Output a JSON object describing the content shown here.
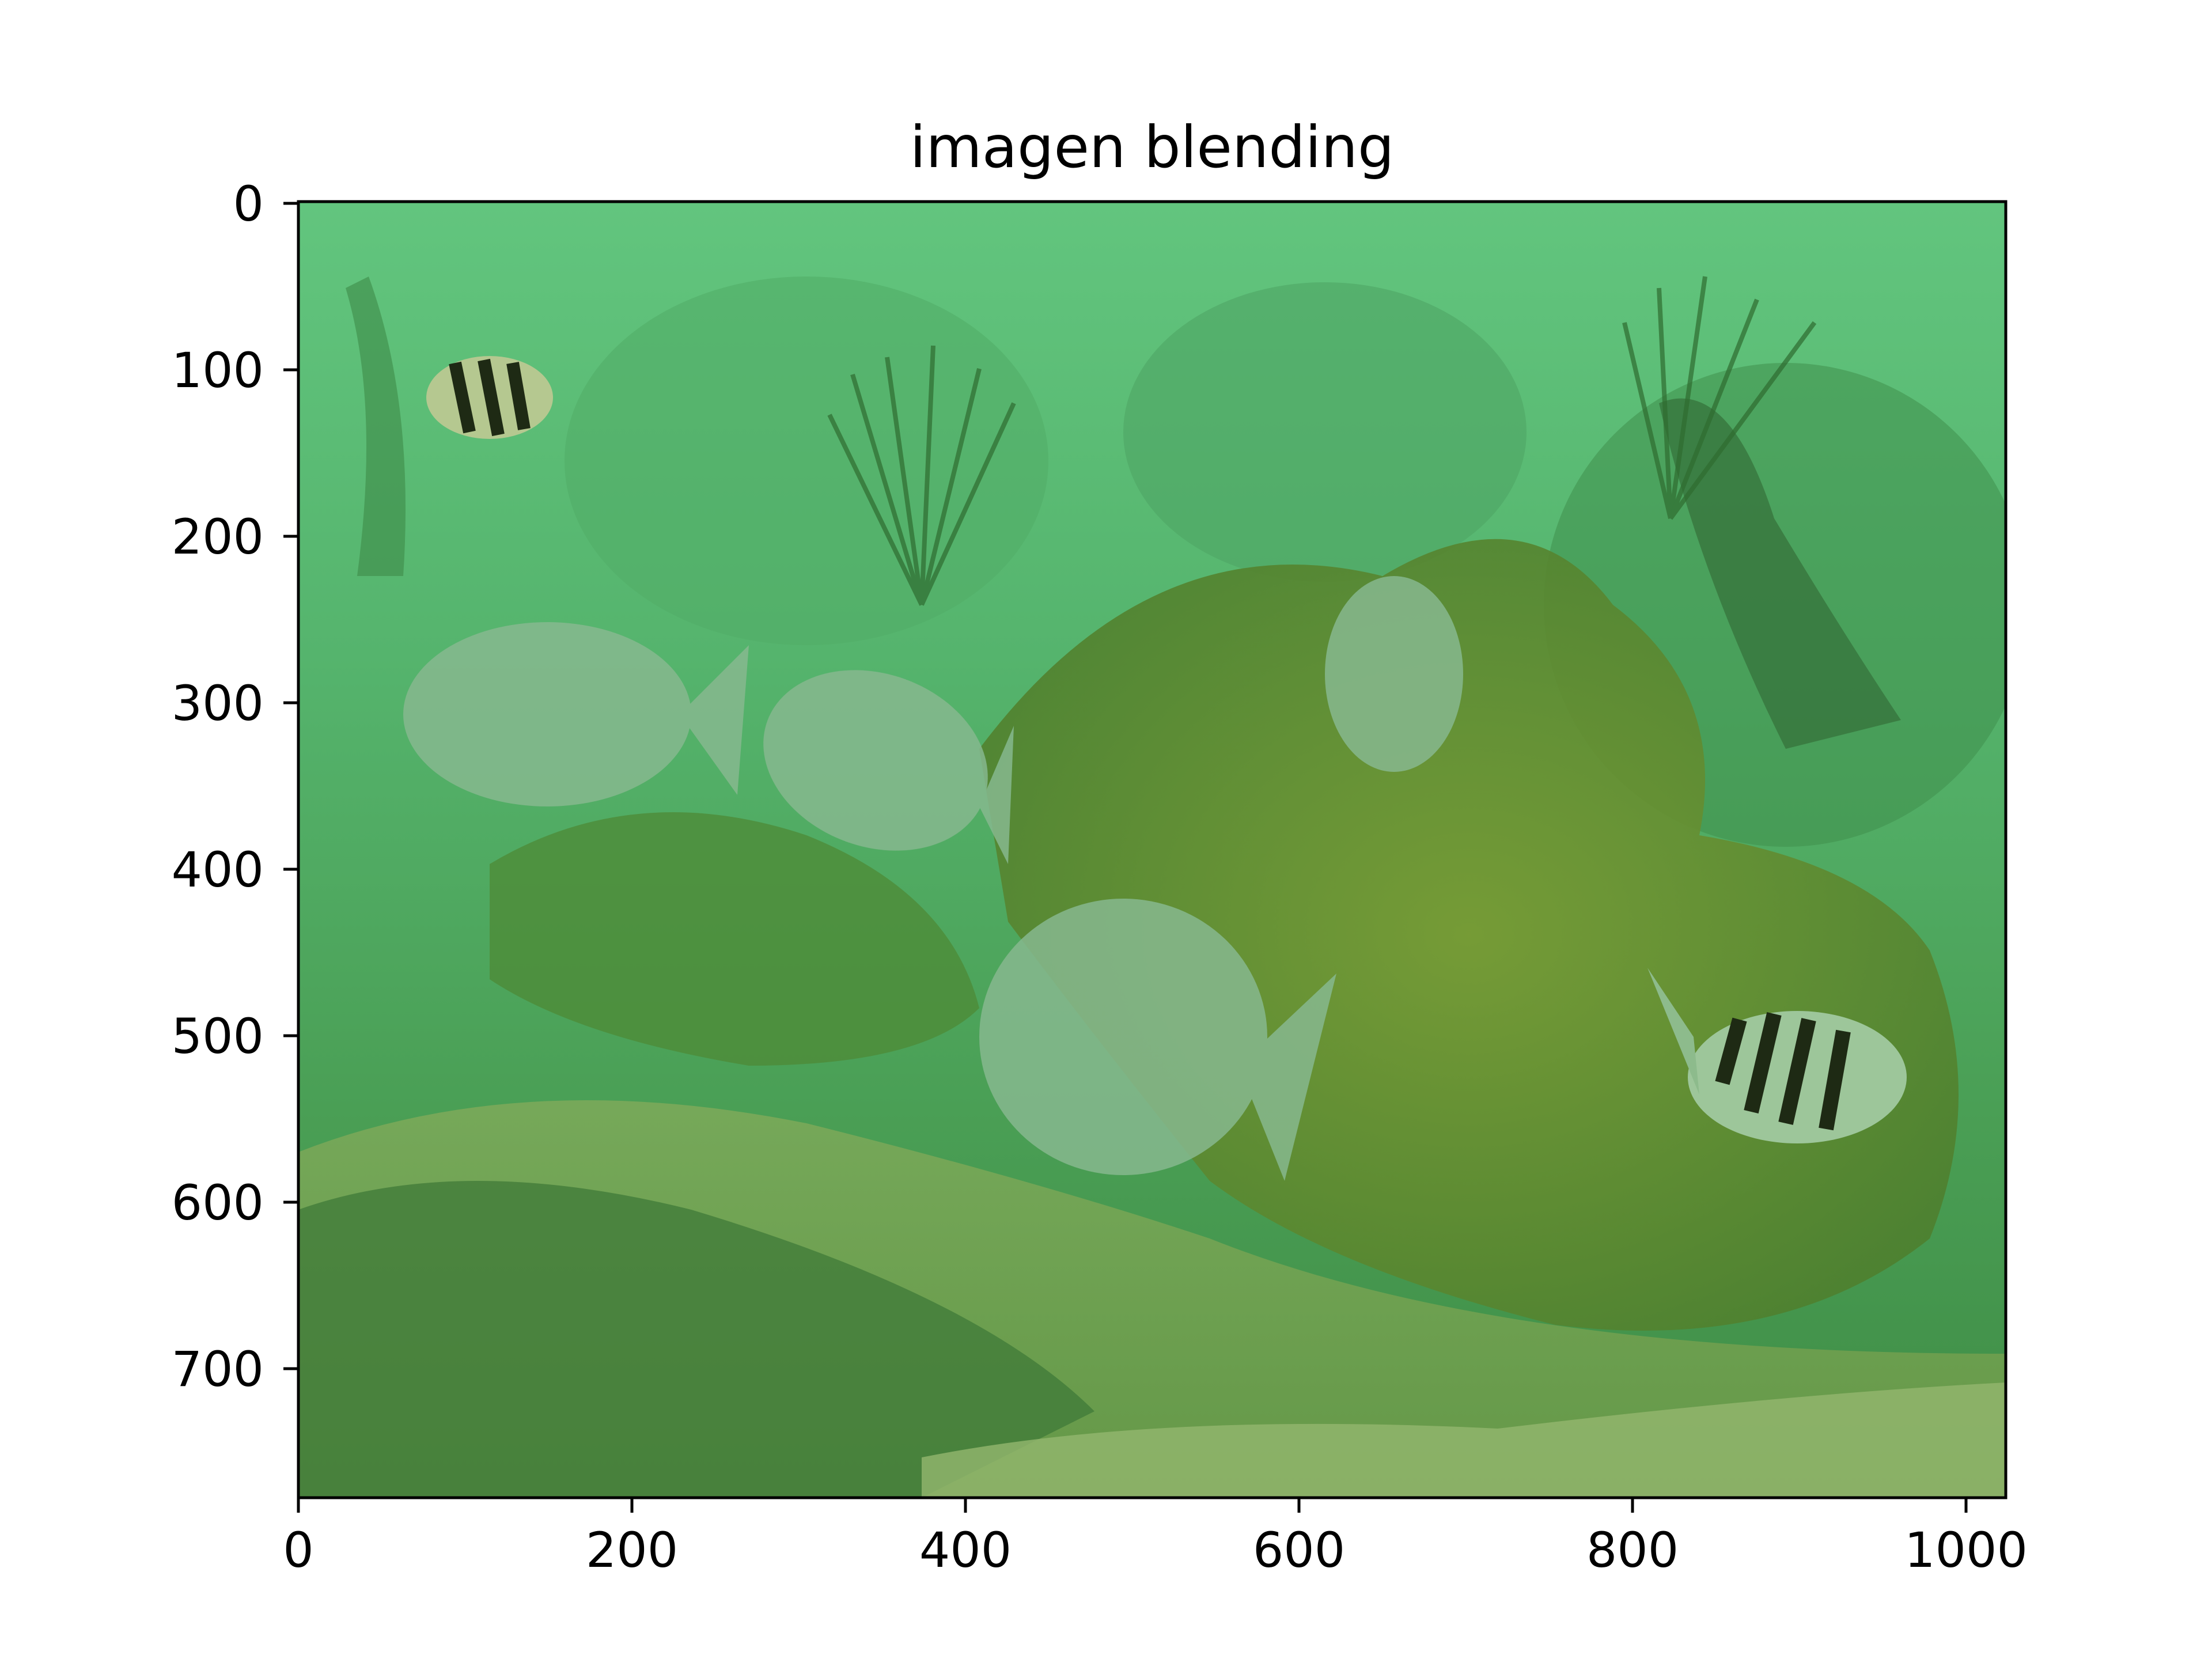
{
  "figure": {
    "title": "imagen blending",
    "image_description_name": "underwater-reef-photo",
    "x_ticks": [
      "0",
      "200",
      "400",
      "600",
      "800",
      "1000"
    ],
    "y_ticks": [
      "0",
      "100",
      "200",
      "300",
      "400",
      "500",
      "600",
      "700"
    ],
    "x_range": [
      0,
      1024
    ],
    "y_range": [
      0,
      778
    ],
    "colors": {
      "water": "#5cbf78",
      "deep_water": "#3f9a55",
      "reef": "#5f8f2c",
      "sand": "#8fb46a",
      "fish": "#86b98e",
      "stripe": "#1e2a14"
    }
  }
}
